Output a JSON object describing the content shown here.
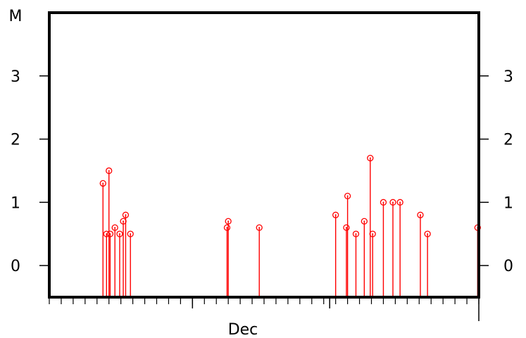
{
  "chart_data": {
    "type": "scatter",
    "style": "stem",
    "y_unit_label": "M",
    "x_month_label": "Dec",
    "ylim": [
      -0.5,
      4.0
    ],
    "y_ticks": [
      0,
      1,
      2,
      3
    ],
    "marker_color": "#ff0000",
    "frame_color": "#000000",
    "x_range_days": [
      0,
      36
    ],
    "x_major_ticks_days": [
      12,
      23.5,
      36
    ],
    "points": [
      {
        "x": 4.5,
        "y": 1.3
      },
      {
        "x": 4.8,
        "y": 0.5
      },
      {
        "x": 5.0,
        "y": 1.5
      },
      {
        "x": 5.1,
        "y": 0.5
      },
      {
        "x": 5.5,
        "y": 0.6
      },
      {
        "x": 5.9,
        "y": 0.5
      },
      {
        "x": 6.2,
        "y": 0.7
      },
      {
        "x": 6.4,
        "y": 0.8
      },
      {
        "x": 6.8,
        "y": 0.5
      },
      {
        "x": 14.9,
        "y": 0.6
      },
      {
        "x": 15.0,
        "y": 0.7
      },
      {
        "x": 17.6,
        "y": 0.6
      },
      {
        "x": 24.0,
        "y": 0.8
      },
      {
        "x": 24.9,
        "y": 0.6
      },
      {
        "x": 25.0,
        "y": 1.1
      },
      {
        "x": 25.7,
        "y": 0.5
      },
      {
        "x": 26.4,
        "y": 0.7
      },
      {
        "x": 26.9,
        "y": 1.7
      },
      {
        "x": 27.1,
        "y": 0.5
      },
      {
        "x": 28.0,
        "y": 1.0
      },
      {
        "x": 28.8,
        "y": 1.0
      },
      {
        "x": 29.4,
        "y": 1.0
      },
      {
        "x": 31.1,
        "y": 0.8
      },
      {
        "x": 31.7,
        "y": 0.5
      },
      {
        "x": 35.9,
        "y": 0.6
      }
    ]
  }
}
